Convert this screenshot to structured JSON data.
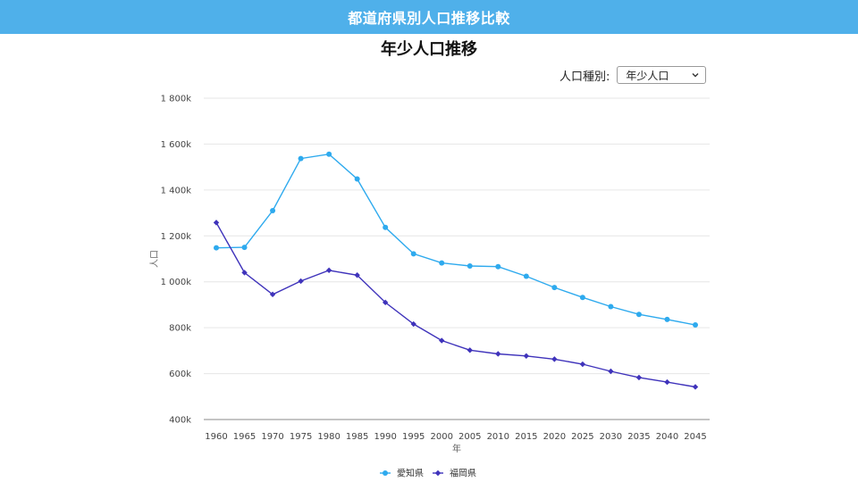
{
  "header": {
    "title": "都道府県別人口推移比較"
  },
  "selector": {
    "label": "人口種別:",
    "selected": "年少人口",
    "icon": "chevron-down-icon"
  },
  "chart_data": {
    "type": "line",
    "title": "年少人口推移",
    "xlabel": "年",
    "ylabel": "人口",
    "x": [
      1960,
      1965,
      1970,
      1975,
      1980,
      1985,
      1990,
      1995,
      2000,
      2005,
      2010,
      2015,
      2020,
      2025,
      2030,
      2035,
      2040,
      2045
    ],
    "ylim": [
      400000,
      1800000
    ],
    "yticks": [
      400000,
      600000,
      800000,
      1000000,
      1200000,
      1400000,
      1600000,
      1800000
    ],
    "ytick_labels": [
      "400k",
      "600k",
      "800k",
      "1 000k",
      "1 200k",
      "1 400k",
      "1 600k",
      "1 800k"
    ],
    "grid": true,
    "legend": "bottom-center",
    "series": [
      {
        "name": "愛知県",
        "color": "#2eaaee",
        "marker": "circle",
        "values": [
          1148000,
          1150000,
          1310000,
          1537000,
          1556000,
          1448000,
          1237000,
          1122000,
          1082000,
          1069000,
          1066000,
          1024000,
          975000,
          932000,
          892000,
          858000,
          836000,
          812000
        ]
      },
      {
        "name": "福岡県",
        "color": "#3f33bb",
        "marker": "diamond",
        "values": [
          1258000,
          1040000,
          945000,
          1003000,
          1050000,
          1029000,
          910000,
          816000,
          744000,
          702000,
          686000,
          677000,
          663000,
          641000,
          610000,
          583000,
          563000,
          542000
        ]
      }
    ]
  }
}
